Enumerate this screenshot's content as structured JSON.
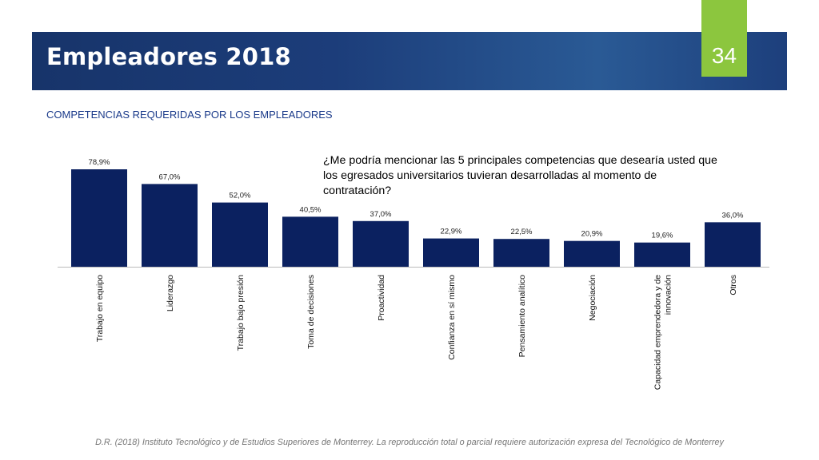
{
  "slide": {
    "title": "Empleadores 2018",
    "number": "34",
    "subtitle": "COMPETENCIAS REQUERIDAS POR LOS EMPLEADORES",
    "question": "¿Me podría mencionar las 5 principales competencias que desearía usted que los egresados universitarios tuvieran desarrolladas al momento de contratación?",
    "footer": "D.R. (2018) Instituto Tecnológico y de Estudios Superiores de Monterrey. La reproducción total o parcial requiere autorización expresa del Tecnológico de Monterrey"
  },
  "colors": {
    "bar": "#0b2160",
    "banner": "#1c3d7a",
    "slide_number_box": "#8cc63e",
    "subtitle": "#1a3a8a"
  },
  "chart_data": {
    "type": "bar",
    "categories": [
      [
        "Trabajo en equipo"
      ],
      [
        "Liderazgo"
      ],
      [
        "Trabajo bajo presión"
      ],
      [
        "Toma de decisiones"
      ],
      [
        "Proactividad"
      ],
      [
        "Confianza en sí mismo"
      ],
      [
        "Pensamiento analítico"
      ],
      [
        "Negociación"
      ],
      [
        "Capacidad emprendedora y de",
        "innovación"
      ],
      [
        "Otros"
      ]
    ],
    "values": [
      78.9,
      67.0,
      52.0,
      40.5,
      37.0,
      22.9,
      22.5,
      20.9,
      19.6,
      36.0
    ],
    "labels": [
      "78,9%",
      "67,0%",
      "52,0%",
      "40,5%",
      "37,0%",
      "22,9%",
      "22,5%",
      "20,9%",
      "19,6%",
      "36,0%"
    ],
    "ylim": [
      0,
      100
    ],
    "grid": false,
    "legend": "none"
  }
}
